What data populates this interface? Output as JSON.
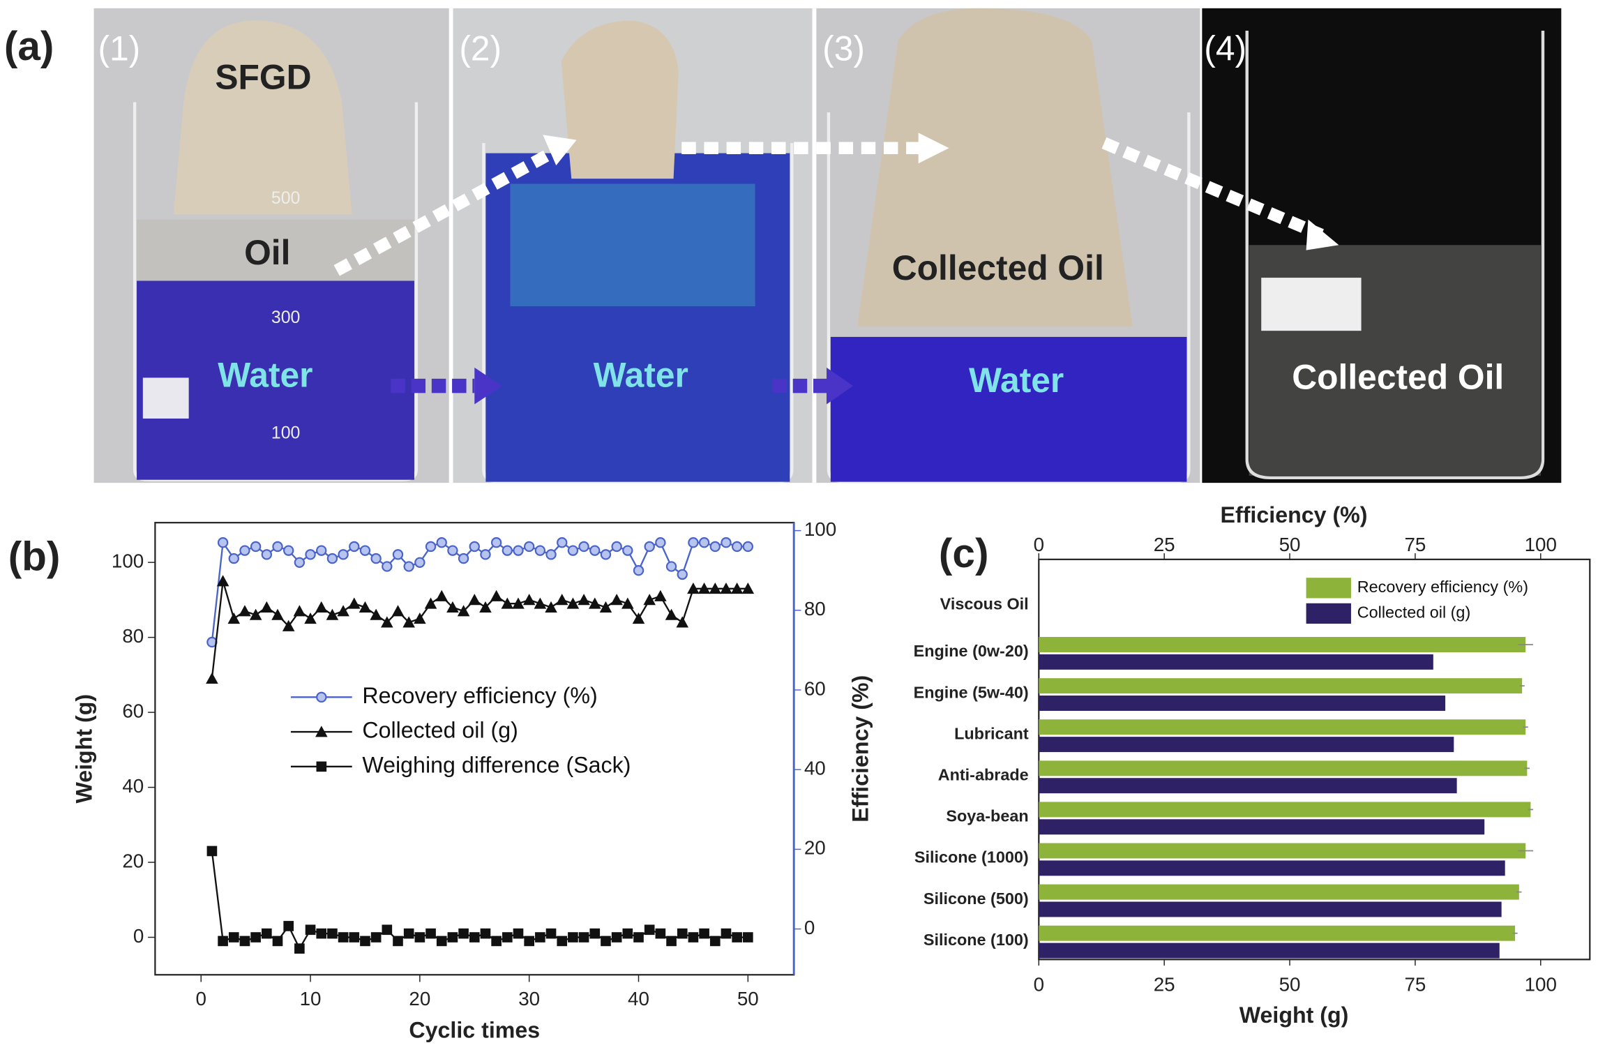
{
  "panel_labels": [
    "(a)",
    "(b)",
    "(c)"
  ],
  "photo": {
    "steps": [
      "(1)",
      "(2)",
      "(3)",
      "(4)"
    ],
    "labels": [
      "SFGD",
      "Oil",
      "Water",
      "Water",
      "Collected Oil",
      "Water",
      "Collected Oil"
    ],
    "scale_marks": [
      "500",
      "300",
      "100"
    ]
  },
  "chart_data": [
    {
      "type": "line",
      "x_label": "Cyclic times",
      "y_label": "Weight (g)",
      "y2_label": "Efficiency (%)",
      "x": [
        1,
        2,
        3,
        4,
        5,
        6,
        7,
        8,
        9,
        10,
        11,
        12,
        13,
        14,
        15,
        16,
        17,
        18,
        19,
        20,
        21,
        22,
        23,
        24,
        25,
        26,
        27,
        28,
        29,
        30,
        31,
        32,
        33,
        34,
        35,
        36,
        37,
        38,
        39,
        40,
        41,
        42,
        43,
        44,
        45,
        46,
        47,
        48,
        49,
        50
      ],
      "series": [
        {
          "name": "Recovery efficiency (%)",
          "color": "#4a63c8",
          "marker": "circle",
          "axis": "y2",
          "values": [
            72,
            97,
            93,
            95,
            96,
            94,
            96,
            95,
            92,
            94,
            95,
            93,
            94,
            96,
            95,
            93,
            91,
            94,
            91,
            92,
            96,
            97,
            95,
            93,
            96,
            94,
            97,
            95,
            95,
            96,
            95,
            94,
            97,
            95,
            96,
            95,
            94,
            96,
            95,
            90,
            96,
            97,
            91,
            89,
            97,
            97,
            96,
            97,
            96,
            96
          ]
        },
        {
          "name": "Collected oil (g)",
          "color": "#111111",
          "marker": "triangle",
          "values": [
            69,
            95,
            85,
            87,
            86,
            88,
            86,
            83,
            87,
            85,
            88,
            86,
            87,
            89,
            88,
            86,
            84,
            87,
            84,
            85,
            89,
            91,
            88,
            87,
            90,
            88,
            91,
            89,
            89,
            90,
            89,
            88,
            90,
            89,
            90,
            89,
            88,
            90,
            89,
            85,
            90,
            91,
            86,
            84,
            93,
            93,
            93,
            93,
            93,
            93
          ]
        },
        {
          "name": "Weighing difference (Sack)",
          "color": "#111111",
          "marker": "square",
          "values": [
            23,
            -1,
            0,
            -1,
            0,
            1,
            -1,
            3,
            -3,
            2,
            1,
            1,
            0,
            0,
            -1,
            0,
            2,
            -1,
            1,
            0,
            1,
            -1,
            0,
            1,
            0,
            1,
            -1,
            0,
            1,
            -1,
            0,
            1,
            -1,
            0,
            0,
            1,
            -1,
            0,
            1,
            0,
            2,
            1,
            -1,
            1,
            0,
            1,
            -1,
            1,
            0,
            0
          ]
        }
      ],
      "xlim": [
        -4.2,
        54.2
      ],
      "xticks": [
        0,
        10,
        20,
        30,
        40,
        50
      ],
      "ylim": [
        -10,
        110.6
      ],
      "yticks": [
        0,
        20,
        40,
        60,
        80,
        100
      ],
      "y2lim": [
        -11.5,
        102
      ],
      "y2ticks": [
        0,
        20,
        40,
        60,
        80,
        100
      ],
      "y2_color": "#4a63c8",
      "legend": "center"
    },
    {
      "type": "bar",
      "orientation": "horizontal",
      "y_label": "Viscous Oil",
      "x_label": "Weight (g)",
      "x2_label": "Efficiency (%)",
      "categories": [
        "Engine (0w-20)",
        "Engine (5w-40)",
        "Lubricant",
        "Anti-abrade",
        "Soya-bean",
        "Silicone (1000)",
        "Silicone (500)",
        "Silicone (100)"
      ],
      "series": [
        {
          "name": "Recovery efficiency (%)",
          "color": "#8db33a",
          "axis": "x2",
          "values": [
            97,
            96.3,
            97,
            97.3,
            98,
            97,
            95.7,
            94.9
          ],
          "errors": [
            1.5,
            0.5,
            0.5,
            0.5,
            0.5,
            1.5,
            0.5,
            0.5
          ]
        },
        {
          "name": "Collected oil (g)",
          "color": "#2e2166",
          "values": [
            78.6,
            81,
            82.7,
            83.3,
            88.8,
            92.9,
            92.2,
            91.8
          ]
        }
      ],
      "xlim": [
        0,
        109.8
      ],
      "xticks": [
        0,
        25,
        50,
        75,
        100
      ],
      "x2lim": [
        0,
        109.8
      ],
      "x2ticks": [
        0,
        25,
        50,
        75,
        100
      ],
      "legend": "upper right"
    }
  ]
}
